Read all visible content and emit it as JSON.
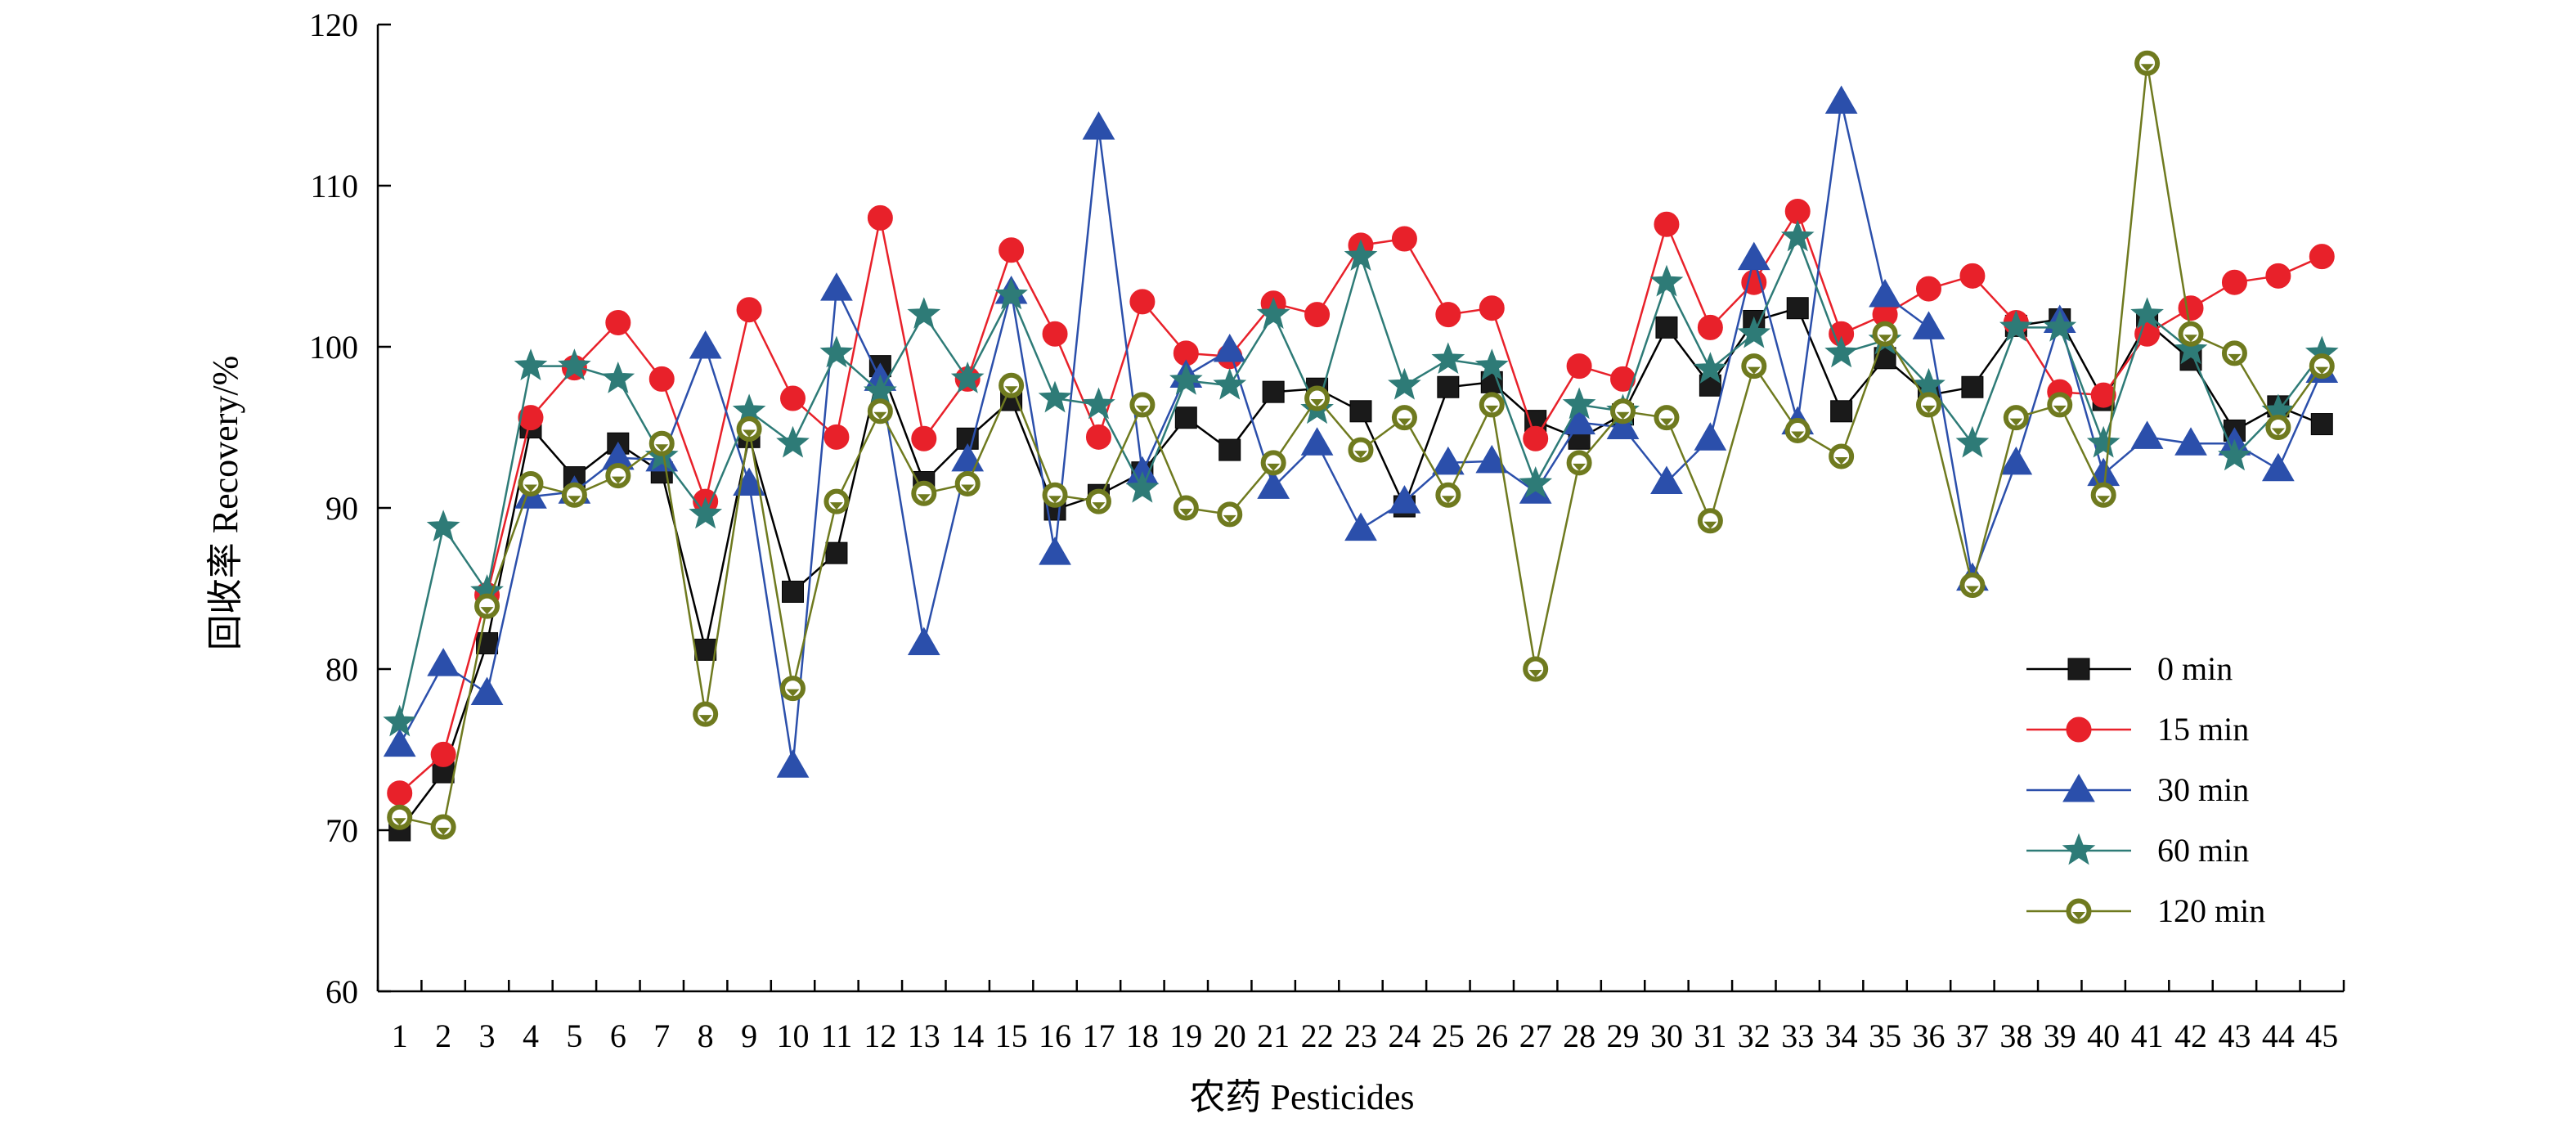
{
  "chart_data": {
    "type": "line",
    "title": "",
    "xlabel": "农药 Pesticides",
    "ylabel": "回收率 Recovery/%",
    "ylim": [
      60,
      120
    ],
    "yticks": [
      60,
      70,
      80,
      90,
      100,
      110,
      120
    ],
    "x": [
      1,
      2,
      3,
      4,
      5,
      6,
      7,
      8,
      9,
      10,
      11,
      12,
      13,
      14,
      15,
      16,
      17,
      18,
      19,
      20,
      21,
      22,
      23,
      24,
      25,
      26,
      27,
      28,
      29,
      30,
      31,
      32,
      33,
      34,
      35,
      36,
      37,
      38,
      39,
      40,
      41,
      42,
      43,
      44,
      45
    ],
    "grid": false,
    "legend_position": "lower-right",
    "series": [
      {
        "name": "0 min",
        "color": "#000000",
        "marker": "square",
        "values": [
          70.0,
          73.6,
          81.6,
          95.0,
          91.9,
          94.0,
          92.2,
          81.2,
          94.4,
          84.8,
          87.2,
          98.8,
          91.6,
          94.3,
          96.7,
          89.9,
          90.8,
          92.2,
          95.6,
          93.6,
          97.2,
          97.4,
          96.0,
          90.1,
          97.5,
          97.8,
          95.4,
          94.3,
          95.8,
          101.2,
          97.6,
          101.6,
          102.4,
          96.0,
          99.3,
          97.0,
          97.5,
          101.3,
          101.7,
          96.7,
          101.5,
          99.2,
          94.8,
          96.3,
          95.2
        ]
      },
      {
        "name": "15 min",
        "color": "#e8212a",
        "marker": "circle",
        "values": [
          72.3,
          74.7,
          84.6,
          95.6,
          98.7,
          101.5,
          98.0,
          90.4,
          102.3,
          96.8,
          94.4,
          108.0,
          94.3,
          98.0,
          106.0,
          100.8,
          94.4,
          102.8,
          99.6,
          99.4,
          102.7,
          102.0,
          106.3,
          106.7,
          102.0,
          102.4,
          94.3,
          98.8,
          98.0,
          107.6,
          101.2,
          104.0,
          108.4,
          100.8,
          102.0,
          103.6,
          104.4,
          101.5,
          97.2,
          97.0,
          100.8,
          102.4,
          104.0,
          104.4,
          105.6
        ]
      },
      {
        "name": "30 min",
        "color": "#2b4fab",
        "marker": "triangle",
        "values": [
          75.3,
          80.3,
          78.5,
          90.7,
          91.0,
          93.1,
          93.0,
          100.0,
          91.5,
          74.0,
          103.6,
          98.0,
          81.6,
          93.0,
          103.4,
          87.2,
          113.6,
          92.2,
          98.2,
          99.8,
          91.3,
          94.0,
          88.7,
          90.4,
          92.8,
          92.9,
          91.0,
          95.3,
          95.0,
          91.6,
          94.3,
          105.5,
          95.3,
          115.2,
          103.2,
          101.2,
          85.6,
          92.8,
          101.6,
          92.1,
          94.4,
          94.0,
          94.0,
          92.4,
          98.5
        ]
      },
      {
        "name": "60 min",
        "color": "#2e7b77",
        "marker": "star",
        "values": [
          76.7,
          88.8,
          84.8,
          98.8,
          98.8,
          98.0,
          93.2,
          89.6,
          96.0,
          94.0,
          99.6,
          97.2,
          102.0,
          98.0,
          103.2,
          96.8,
          96.4,
          91.2,
          97.9,
          97.6,
          102.0,
          96.1,
          105.6,
          97.6,
          99.2,
          98.8,
          91.5,
          96.4,
          96.0,
          104.0,
          98.6,
          100.8,
          106.8,
          99.6,
          100.4,
          97.6,
          94.0,
          101.2,
          101.2,
          94.0,
          102.0,
          99.8,
          93.2,
          96.0,
          99.6
        ]
      },
      {
        "name": "120 min",
        "color": "#6f7a1f",
        "marker": "circle-v",
        "values": [
          70.8,
          70.2,
          83.9,
          91.5,
          90.8,
          92.0,
          94.0,
          77.2,
          94.9,
          78.8,
          90.4,
          96.0,
          90.9,
          91.5,
          97.6,
          90.8,
          90.4,
          96.4,
          90.0,
          89.6,
          92.8,
          96.8,
          93.6,
          95.6,
          90.8,
          96.4,
          80.0,
          92.8,
          96.0,
          95.6,
          89.2,
          98.8,
          94.8,
          93.2,
          100.8,
          96.4,
          85.2,
          95.6,
          96.4,
          90.8,
          117.6,
          100.8,
          99.6,
          95.0,
          98.8
        ]
      }
    ]
  }
}
